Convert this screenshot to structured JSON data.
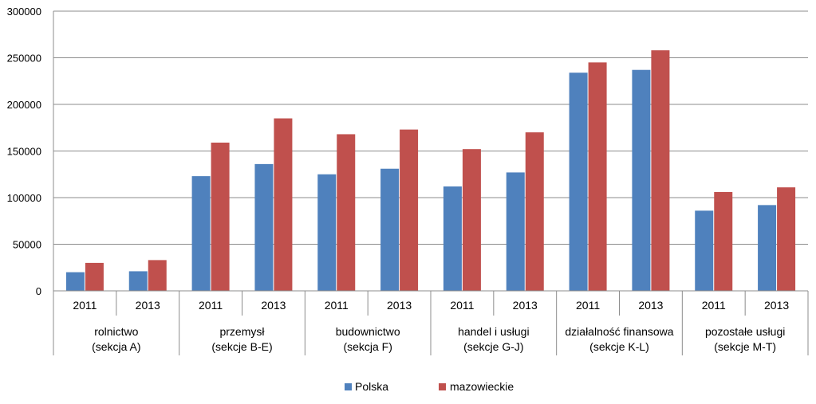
{
  "chart_data": {
    "type": "bar",
    "title": "",
    "xlabel": "",
    "ylabel": "",
    "ylim": [
      0,
      300000
    ],
    "yticks": [
      "0",
      "50000",
      "100000",
      "150000",
      "200000",
      "250000",
      "300000"
    ],
    "grid": true,
    "legend_position": "bottom",
    "groups": [
      {
        "label_line1": "rolnictwo",
        "label_line2": "(sekcja A)",
        "years": [
          "2011",
          "2013"
        ]
      },
      {
        "label_line1": "przemysł",
        "label_line2": "(sekcje B-E)",
        "years": [
          "2011",
          "2013"
        ]
      },
      {
        "label_line1": "budownictwo",
        "label_line2": "(sekcja F)",
        "years": [
          "2011",
          "2013"
        ]
      },
      {
        "label_line1": "handel i usługi",
        "label_line2": "(sekcje G-J)",
        "years": [
          "2011",
          "2013"
        ]
      },
      {
        "label_line1": "działalność finansowa",
        "label_line2": "(sekcje K-L)",
        "years": [
          "2011",
          "2013"
        ]
      },
      {
        "label_line1": "pozostałe usługi",
        "label_line2": "(sekcje M-T)",
        "years": [
          "2011",
          "2013"
        ]
      }
    ],
    "series": [
      {
        "name": "Polska",
        "color": "#4F81BD",
        "values": [
          20000,
          21000,
          123000,
          136000,
          125000,
          131000,
          112000,
          127000,
          234000,
          237000,
          86000,
          92000
        ]
      },
      {
        "name": "mazowieckie",
        "color": "#C0504D",
        "values": [
          30000,
          33000,
          159000,
          185000,
          168000,
          173000,
          152000,
          170000,
          245000,
          258000,
          106000,
          111000
        ]
      }
    ]
  }
}
